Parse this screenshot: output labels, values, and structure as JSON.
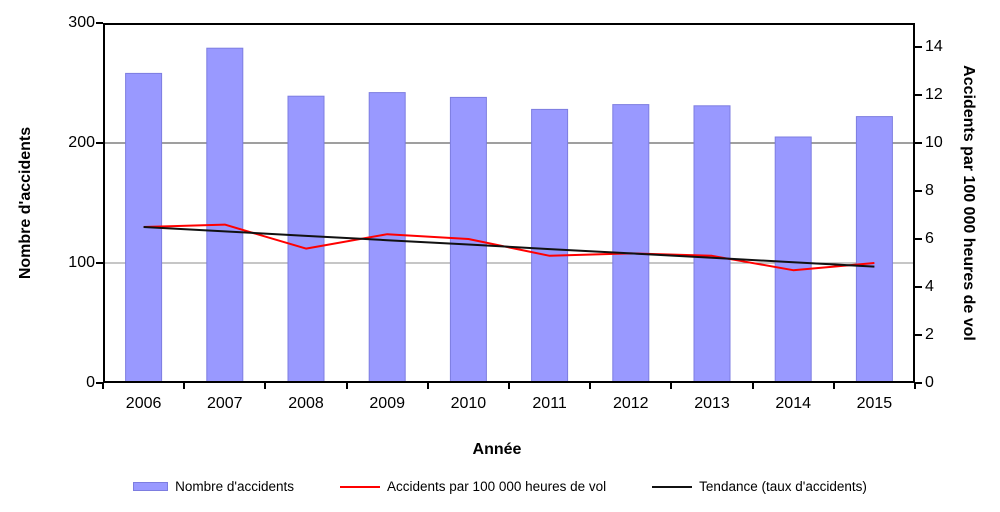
{
  "chart_data": {
    "type": "bar",
    "subtype": "bar-line-combo-dual-axis",
    "title": "",
    "categories": [
      "2006",
      "2007",
      "2008",
      "2009",
      "2010",
      "2011",
      "2012",
      "2013",
      "2014",
      "2015"
    ],
    "series": [
      {
        "name": "Nombre d'accidents",
        "type": "bar",
        "axis": "left",
        "color": "#9999FF",
        "border_color": "#7d7de0",
        "values": [
          258,
          279,
          239,
          242,
          238,
          228,
          232,
          231,
          205,
          222
        ]
      },
      {
        "name": "Accidents par 100 000 heures de vol",
        "type": "line",
        "axis": "right",
        "color": "#FF0000",
        "values": [
          6.5,
          6.6,
          5.6,
          6.2,
          6.0,
          5.3,
          5.4,
          5.3,
          4.7,
          5.0
        ]
      },
      {
        "name": "Tendance (taux d'accidents)",
        "type": "line",
        "axis": "right",
        "color": "#111111",
        "values": [
          6.5,
          6.32,
          6.13,
          5.95,
          5.77,
          5.58,
          5.4,
          5.22,
          5.03,
          4.85
        ]
      }
    ],
    "xlabel": "Année",
    "ylabel_left": "Nombre d'accidents",
    "ylabel_right": "Accidents par 100 000 heures de vol",
    "ylim_left": [
      0,
      300
    ],
    "ylim_right": [
      0,
      15
    ],
    "left_ticks": [
      0,
      100,
      200,
      300
    ],
    "right_ticks": [
      0,
      2,
      4,
      6,
      8,
      10,
      12,
      14
    ],
    "gridlines": [
      {
        "axis": "left",
        "value": 200,
        "color": "#3f3f3f"
      },
      {
        "axis": "left",
        "value": 100,
        "color": "#8c8c8c"
      }
    ],
    "legend_position": "bottom",
    "grid": true
  }
}
